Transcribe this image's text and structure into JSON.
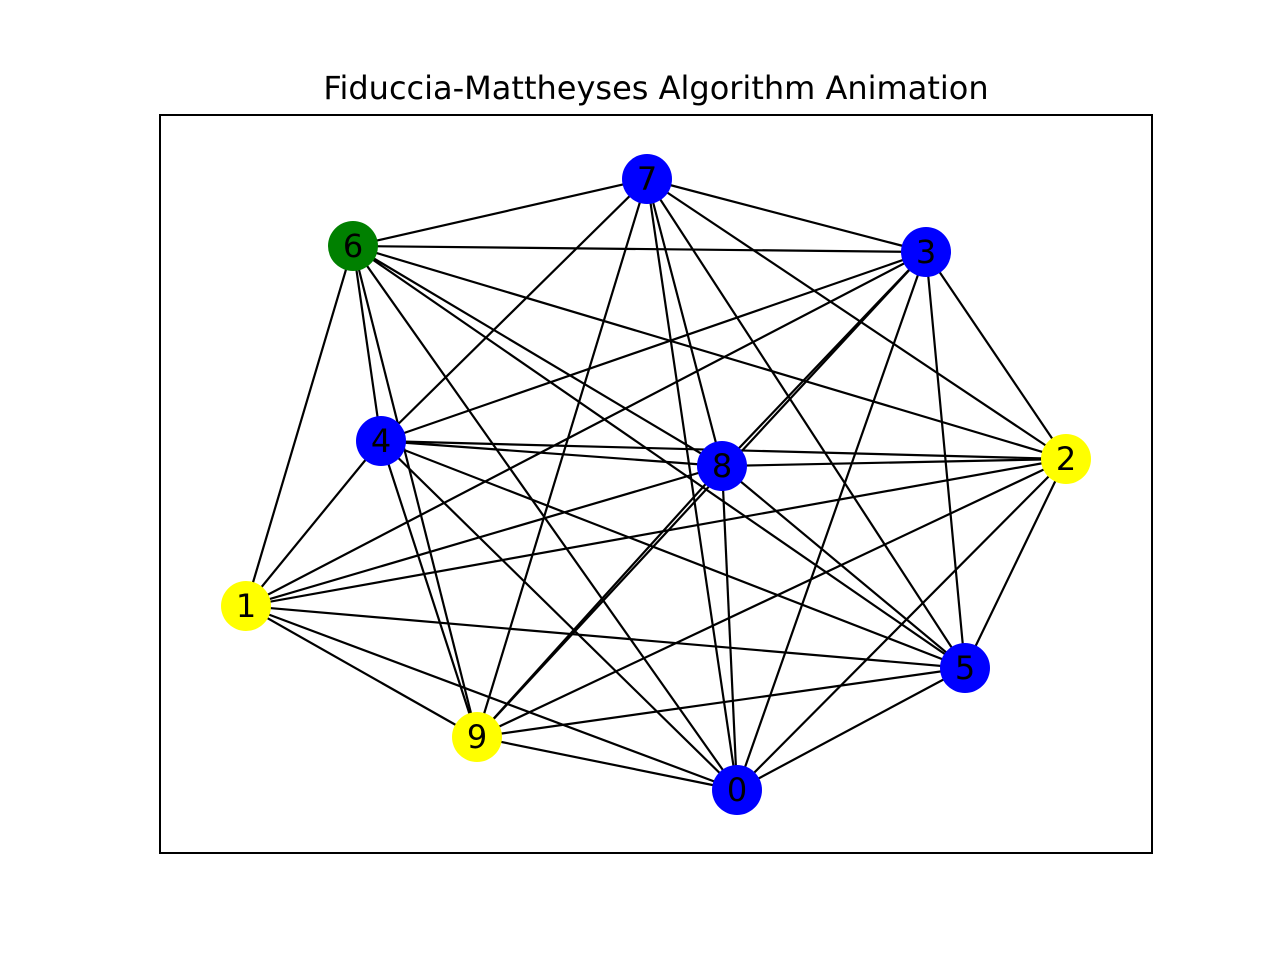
{
  "title": "Fiduccia-Mattheyses Algorithm Animation",
  "colors": {
    "blue": "#0000ff",
    "yellow": "#ffff00",
    "green": "#008000",
    "edge": "#000000"
  },
  "nodes": [
    {
      "id": "0",
      "color": "blue"
    },
    {
      "id": "1",
      "color": "yellow"
    },
    {
      "id": "2",
      "color": "yellow"
    },
    {
      "id": "3",
      "color": "blue"
    },
    {
      "id": "4",
      "color": "blue"
    },
    {
      "id": "5",
      "color": "blue"
    },
    {
      "id": "6",
      "color": "green"
    },
    {
      "id": "7",
      "color": "blue"
    },
    {
      "id": "8",
      "color": "blue"
    },
    {
      "id": "9",
      "color": "yellow"
    }
  ],
  "edges": [
    [
      "6",
      "7"
    ],
    [
      "6",
      "3"
    ],
    [
      "6",
      "1"
    ],
    [
      "6",
      "4"
    ],
    [
      "6",
      "9"
    ],
    [
      "6",
      "0"
    ],
    [
      "6",
      "8"
    ],
    [
      "6",
      "5"
    ],
    [
      "6",
      "2"
    ],
    [
      "7",
      "3"
    ],
    [
      "7",
      "4"
    ],
    [
      "7",
      "9"
    ],
    [
      "7",
      "0"
    ],
    [
      "7",
      "8"
    ],
    [
      "7",
      "5"
    ],
    [
      "7",
      "2"
    ],
    [
      "3",
      "4"
    ],
    [
      "3",
      "1"
    ],
    [
      "3",
      "8"
    ],
    [
      "3",
      "9"
    ],
    [
      "3",
      "0"
    ],
    [
      "3",
      "5"
    ],
    [
      "3",
      "2"
    ],
    [
      "4",
      "8"
    ],
    [
      "4",
      "2"
    ],
    [
      "4",
      "1"
    ],
    [
      "4",
      "9"
    ],
    [
      "4",
      "0"
    ],
    [
      "4",
      "5"
    ],
    [
      "8",
      "2"
    ],
    [
      "8",
      "1"
    ],
    [
      "8",
      "9"
    ],
    [
      "8",
      "0"
    ],
    [
      "8",
      "5"
    ],
    [
      "2",
      "1"
    ],
    [
      "2",
      "9"
    ],
    [
      "2",
      "5"
    ],
    [
      "2",
      "0"
    ],
    [
      "1",
      "5"
    ],
    [
      "1",
      "9"
    ],
    [
      "1",
      "0"
    ],
    [
      "9",
      "5"
    ],
    [
      "9",
      "0"
    ],
    [
      "0",
      "5"
    ]
  ]
}
